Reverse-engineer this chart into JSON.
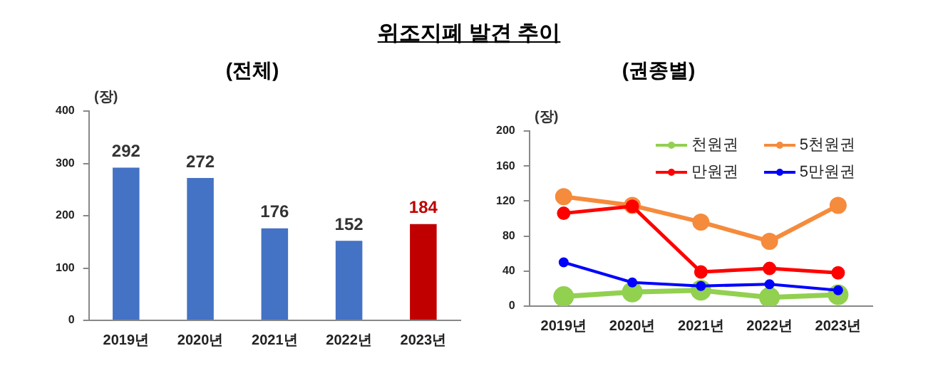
{
  "chart_data": [
    {
      "type": "bar",
      "title": "위조지폐 발견 추이",
      "subtitle": "(전체)",
      "ylabel": "(장)",
      "categories": [
        "2019년",
        "2020년",
        "2021년",
        "2022년",
        "2023년"
      ],
      "values": [
        292,
        272,
        176,
        152,
        184
      ],
      "colors": [
        "#4472c4",
        "#4472c4",
        "#4472c4",
        "#4472c4",
        "#c00000"
      ],
      "ylim": [
        0,
        400
      ],
      "yticks": [
        0,
        100,
        200,
        300,
        400
      ],
      "data_labels": true,
      "grid": false
    },
    {
      "type": "line",
      "subtitle": "(권종별)",
      "ylabel": "(장)",
      "categories": [
        "2019년",
        "2020년",
        "2021년",
        "2022년",
        "2023년"
      ],
      "series": [
        {
          "name": "천원권",
          "color": "#92d050",
          "values": [
            11,
            16,
            18,
            10,
            13
          ]
        },
        {
          "name": "5천원권",
          "color": "#f58b3c",
          "values": [
            125,
            115,
            96,
            74,
            115
          ]
        },
        {
          "name": "만원권",
          "color": "#ff0000",
          "values": [
            106,
            114,
            39,
            43,
            38
          ]
        },
        {
          "name": "5만원권",
          "color": "#0000ff",
          "values": [
            50,
            27,
            23,
            25,
            18
          ]
        }
      ],
      "ylim": [
        0,
        200
      ],
      "yticks": [
        0,
        40,
        80,
        120,
        160,
        200
      ],
      "marker": "circle",
      "line_style": "solid",
      "legend": "top right",
      "grid": false
    }
  ]
}
